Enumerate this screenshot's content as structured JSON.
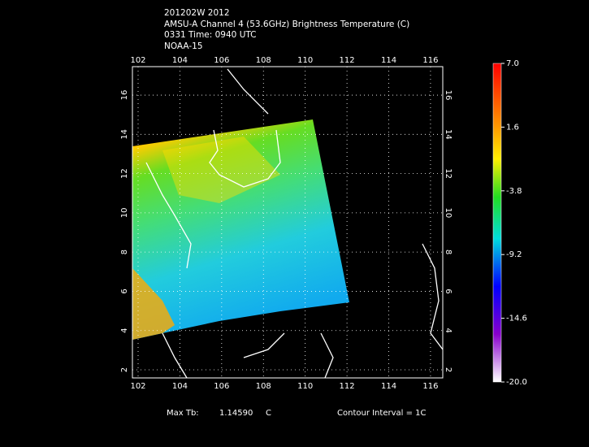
{
  "header": {
    "lines": [
      "201202W 2012",
      "AMSU-A Channel 4 (53.6GHz) Brightness Temperature (C)",
      "0331 Time: 0940 UTC",
      "NOAA-15"
    ]
  },
  "map": {
    "lon_ticks": [
      102,
      104,
      106,
      108,
      110,
      112,
      114,
      116
    ],
    "lat_ticks": [
      2,
      4,
      6,
      8,
      10,
      12,
      14,
      16
    ]
  },
  "colorbar": {
    "labels": [
      "7.0",
      "1.6",
      "-3.8",
      "-9.2",
      "-14.6",
      "-20.0"
    ]
  },
  "footer": {
    "max_label": "Max Tb:",
    "max_value": "1.14590",
    "max_unit": "C",
    "contour": "Contour Interval = 1C"
  }
}
